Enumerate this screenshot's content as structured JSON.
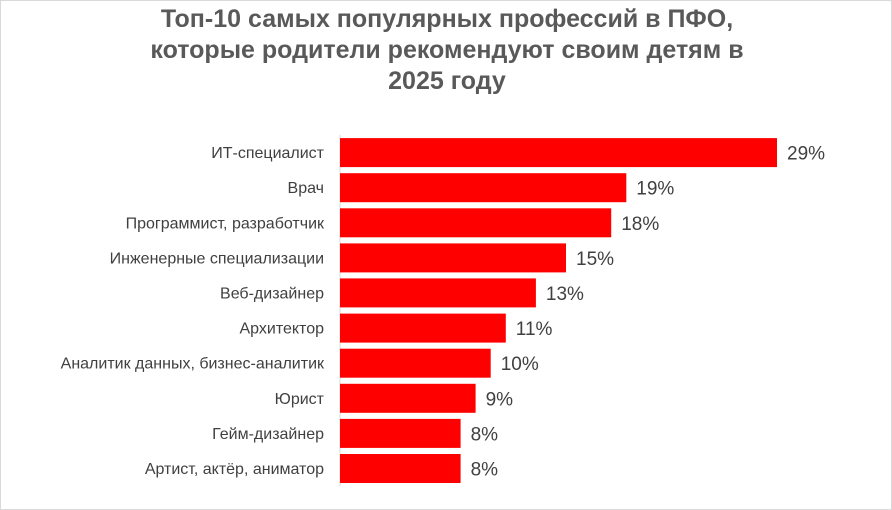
{
  "chart_data": {
    "type": "bar",
    "orientation": "horizontal",
    "title_lines": [
      "Топ-10 самых популярных профессий в ПФО,",
      "которые родители рекомендуют своим детям в",
      "2025 году"
    ],
    "categories": [
      "ИТ-специалист",
      "Врач",
      "Программист, разработчик",
      "Инженерные специализации",
      "Веб-дизайнер",
      "Архитектор",
      "Аналитик данных, бизнес-аналитик",
      "Юрист",
      "Гейм-дизайнер",
      "Артист, актёр, аниматор"
    ],
    "values": [
      29,
      19,
      18,
      15,
      13,
      11,
      10,
      9,
      8,
      8
    ],
    "data_labels": [
      "29%",
      "19%",
      "18%",
      "15%",
      "13%",
      "11%",
      "10%",
      "9%",
      "8%",
      "8%"
    ],
    "value_unit": "%",
    "bar_color": "#ff0000",
    "grid": false,
    "legend": "none"
  }
}
